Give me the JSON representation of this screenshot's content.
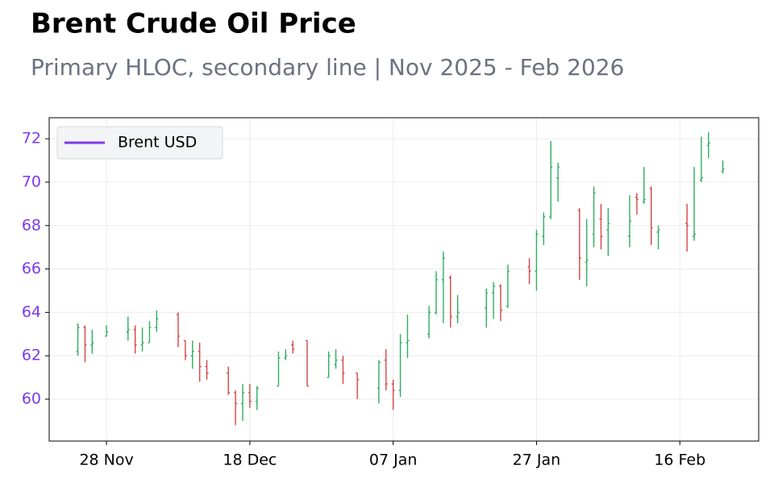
{
  "chart_data": {
    "type": "ohlc",
    "title": "Brent Crude Oil Price",
    "subtitle": "Primary HLOC, secondary line | Nov 2025 - Feb 2026",
    "x": [
      "2025-11-24",
      "2025-11-25",
      "2025-11-26",
      "2025-11-28",
      "2025-12-01",
      "2025-12-02",
      "2025-12-03",
      "2025-12-04",
      "2025-12-05",
      "2025-12-08",
      "2025-12-09",
      "2025-12-10",
      "2025-12-11",
      "2025-12-12",
      "2025-12-15",
      "2025-12-16",
      "2025-12-17",
      "2025-12-18",
      "2025-12-19",
      "2025-12-22",
      "2025-12-23",
      "2025-12-24",
      "2025-12-26",
      "2025-12-29",
      "2025-12-30",
      "2025-12-31",
      "2026-01-02",
      "2026-01-05",
      "2026-01-06",
      "2026-01-07",
      "2026-01-08",
      "2026-01-09",
      "2026-01-12",
      "2026-01-13",
      "2026-01-14",
      "2026-01-15",
      "2026-01-16",
      "2026-01-20",
      "2026-01-21",
      "2026-01-22",
      "2026-01-23",
      "2026-01-26",
      "2026-01-27",
      "2026-01-28",
      "2026-01-29",
      "2026-01-30",
      "2026-02-02",
      "2026-02-03",
      "2026-02-04",
      "2026-02-05",
      "2026-02-06",
      "2026-02-09",
      "2026-02-10",
      "2026-02-11",
      "2026-02-12",
      "2026-02-13",
      "2026-02-17",
      "2026-02-18",
      "2026-02-19",
      "2026-02-20",
      "2026-02-22"
    ],
    "series": [
      {
        "name": "Brent USD",
        "color": "#7c3aed",
        "open": [
          62.2,
          63.3,
          62.5,
          62.9,
          63.1,
          63.2,
          62.5,
          62.6,
          63.3,
          63.9,
          62.7,
          62.0,
          62.2,
          61.5,
          61.2,
          60.3,
          59.8,
          60.3,
          59.9,
          60.6,
          61.9,
          62.5,
          62.7,
          61.0,
          61.6,
          61.8,
          61.2,
          60.5,
          61.8,
          60.7,
          60.4,
          62.6,
          63.0,
          64.0,
          65.5,
          65.6,
          63.8,
          64.2,
          64.9,
          65.2,
          64.3,
          66.1,
          65.9,
          67.5,
          68.4,
          70.2,
          68.7,
          66.3,
          67.6,
          68.3,
          67.8,
          67.5,
          69.3,
          69.1,
          69.7,
          67.7,
          68.1,
          67.5,
          70.1,
          71.7,
          70.5
        ],
        "high": [
          63.5,
          63.4,
          63.2,
          63.4,
          63.8,
          63.4,
          63.3,
          63.6,
          64.1,
          64.0,
          62.7,
          62.7,
          62.6,
          61.8,
          61.5,
          60.4,
          60.7,
          60.7,
          60.6,
          62.2,
          62.3,
          62.7,
          62.7,
          62.2,
          62.3,
          62.0,
          61.2,
          61.8,
          62.3,
          60.9,
          63.0,
          63.9,
          64.3,
          65.9,
          66.8,
          65.7,
          64.8,
          65.1,
          65.4,
          65.3,
          66.2,
          66.5,
          67.8,
          68.6,
          71.9,
          70.9,
          68.8,
          68.3,
          69.8,
          69.0,
          68.8,
          69.4,
          69.5,
          70.7,
          69.8,
          68.0,
          69.0,
          70.7,
          72.1,
          72.3,
          71.0
        ],
        "low": [
          62.0,
          61.7,
          62.1,
          62.9,
          62.7,
          62.1,
          62.2,
          62.6,
          63.1,
          62.4,
          61.8,
          61.4,
          60.8,
          60.9,
          60.2,
          58.8,
          59.0,
          59.6,
          59.5,
          60.6,
          61.8,
          62.1,
          60.6,
          61.0,
          61.4,
          60.7,
          60.0,
          59.8,
          60.4,
          59.5,
          60.1,
          61.9,
          62.8,
          63.9,
          63.5,
          63.3,
          63.5,
          63.3,
          63.7,
          63.6,
          64.2,
          65.3,
          65.0,
          67.1,
          68.3,
          69.1,
          65.5,
          65.2,
          67.0,
          66.9,
          66.6,
          67.0,
          68.5,
          69.0,
          67.1,
          66.9,
          66.8,
          67.3,
          70.0,
          71.1,
          70.4
        ],
        "close": [
          63.3,
          62.5,
          62.6,
          63.1,
          63.2,
          62.5,
          62.6,
          63.3,
          63.7,
          62.9,
          62.0,
          62.2,
          61.5,
          61.2,
          60.3,
          59.8,
          60.3,
          59.9,
          60.5,
          61.9,
          62.0,
          62.3,
          60.6,
          62.0,
          61.8,
          61.2,
          60.9,
          61.7,
          60.7,
          60.4,
          62.6,
          62.7,
          64.0,
          65.5,
          66.5,
          63.8,
          64.0,
          64.9,
          65.2,
          64.1,
          65.9,
          65.9,
          67.6,
          68.4,
          70.7,
          70.7,
          66.5,
          66.4,
          69.5,
          67.5,
          68.1,
          68.2,
          69.2,
          69.2,
          67.9,
          67.8,
          68.0,
          67.6,
          70.2,
          71.8,
          70.6
        ]
      }
    ],
    "up_color": "#2eae5f",
    "down_color": "#d64545",
    "xlim": [
      "2025-11-20",
      "2026-02-27"
    ],
    "xticks": [
      {
        "value": "2025-11-28",
        "label": "28 Nov"
      },
      {
        "value": "2025-12-18",
        "label": "18 Dec"
      },
      {
        "value": "2026-01-07",
        "label": "07 Jan"
      },
      {
        "value": "2026-01-27",
        "label": "27 Jan"
      },
      {
        "value": "2026-02-16",
        "label": "16 Feb"
      }
    ],
    "ylim": [
      58.07,
      72.97
    ],
    "yticks": [
      60,
      62,
      64,
      66,
      68,
      70,
      72
    ],
    "ytick_color": "#7c3aed",
    "grid": true,
    "legend": "upper left"
  }
}
